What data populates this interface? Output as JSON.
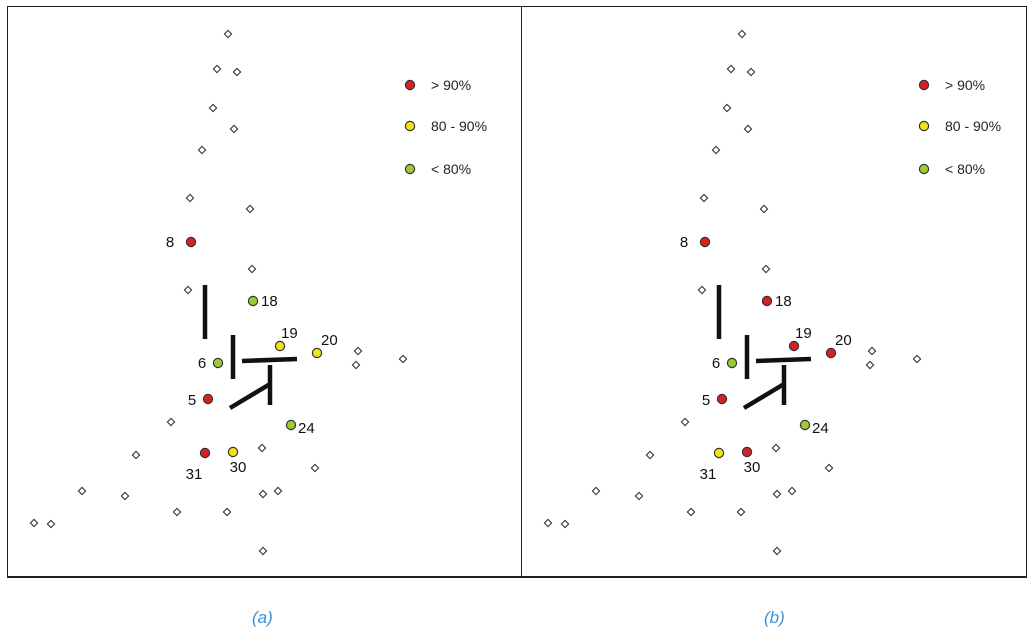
{
  "colors": {
    "gt90": "#d92020",
    "p80_90": "#f2e21a",
    "lt80": "#9ccc2f",
    "hollow": "#ffffff",
    "line": "#111111",
    "caption": "#3a8fd6"
  },
  "legend": [
    {
      "label": "> 90%",
      "color_key": "gt90"
    },
    {
      "label": "80 - 90%",
      "color_key": "p80_90"
    },
    {
      "label": "< 80%",
      "color_key": "lt80"
    }
  ],
  "panels": [
    {
      "caption": "(a)",
      "stations": [
        {
          "id": "8",
          "class": "gt90"
        },
        {
          "id": "18",
          "class": "lt80"
        },
        {
          "id": "19",
          "class": "p80_90"
        },
        {
          "id": "20",
          "class": "p80_90"
        },
        {
          "id": "6",
          "class": "lt80"
        },
        {
          "id": "5",
          "class": "gt90"
        },
        {
          "id": "24",
          "class": "lt80"
        },
        {
          "id": "31",
          "class": "gt90"
        },
        {
          "id": "30",
          "class": "p80_90"
        }
      ]
    },
    {
      "caption": "(b)",
      "stations": [
        {
          "id": "8",
          "class": "gt90"
        },
        {
          "id": "18",
          "class": "gt90"
        },
        {
          "id": "19",
          "class": "gt90"
        },
        {
          "id": "20",
          "class": "gt90"
        },
        {
          "id": "6",
          "class": "lt80"
        },
        {
          "id": "5",
          "class": "gt90"
        },
        {
          "id": "24",
          "class": "lt80"
        },
        {
          "id": "31",
          "class": "p80_90"
        },
        {
          "id": "30",
          "class": "gt90"
        }
      ]
    }
  ]
}
